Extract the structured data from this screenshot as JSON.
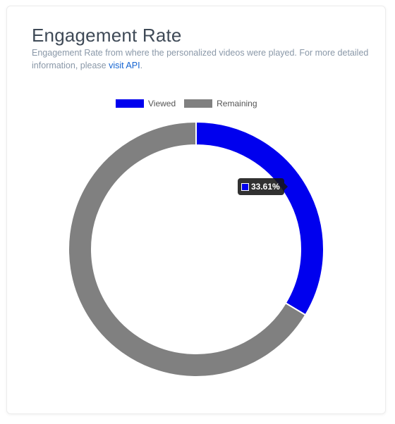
{
  "card": {
    "title": "Engagement Rate",
    "subtitle_text": "Engagement Rate from where the personalized videos were played. For more detailed information, please ",
    "subtitle_link": "visit API",
    "subtitle_end": "."
  },
  "colors": {
    "viewed": "#0000ee",
    "remaining": "#808080",
    "link": "#1464d2"
  },
  "chart_data": {
    "type": "pie",
    "variant": "doughnut",
    "title": "",
    "categories": [
      "Viewed",
      "Remaining"
    ],
    "values": [
      33.61,
      66.39
    ],
    "colors": [
      "#0000ee",
      "#808080"
    ],
    "legend_position": "top",
    "tooltip": {
      "series": "Viewed",
      "label": "33.61%"
    }
  }
}
